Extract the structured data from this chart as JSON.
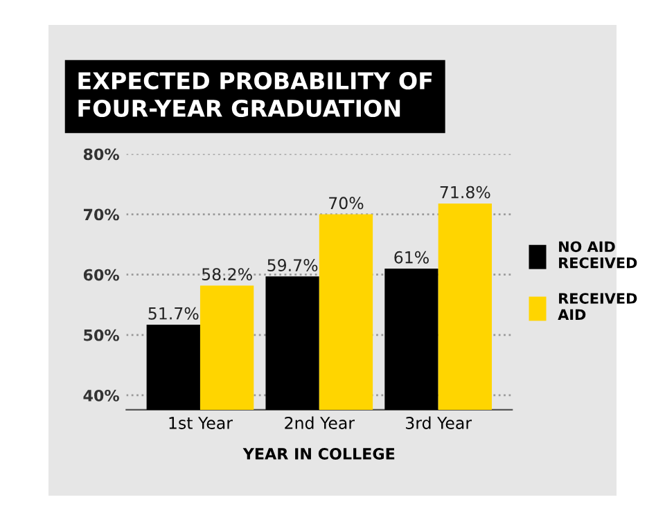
{
  "chart_data": {
    "type": "bar",
    "title": "EXPECTED PROBABILITY OF\nFOUR-YEAR GRADUATION",
    "xlabel": "YEAR IN COLLEGE",
    "categories": [
      "1st Year",
      "2nd Year",
      "3rd Year"
    ],
    "series": [
      {
        "name": "NO AID\nRECEIVED",
        "color": "#000000",
        "values": [
          51.7,
          59.7,
          61
        ],
        "value_labels": [
          "51.7%",
          "59.7%",
          "61%"
        ]
      },
      {
        "name": "RECEIVED\nAID",
        "color": "#ffd500",
        "values": [
          58.2,
          70,
          71.8
        ],
        "value_labels": [
          "58.2%",
          "70%",
          "71.8%"
        ]
      }
    ],
    "ylim": [
      37.6,
      80
    ],
    "yticks": [
      {
        "value": 40,
        "label": "40%"
      },
      {
        "value": 50,
        "label": "50%"
      },
      {
        "value": 60,
        "label": "60%"
      },
      {
        "value": 70,
        "label": "70%"
      },
      {
        "value": 80,
        "label": "80%"
      }
    ],
    "grid": "y",
    "legend": "right"
  }
}
